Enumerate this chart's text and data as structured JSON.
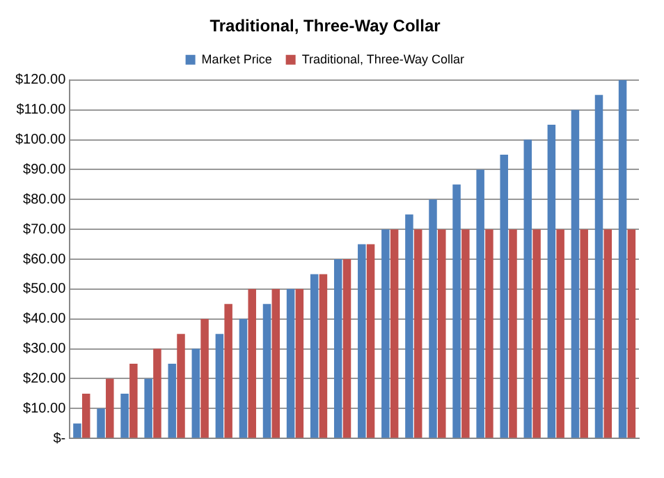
{
  "chart_data": {
    "type": "bar",
    "title": "Traditional, Three-Way Collar",
    "categories": [
      null,
      null,
      null,
      null,
      null,
      null,
      null,
      null,
      null,
      null,
      null,
      null,
      null,
      null,
      null,
      null,
      null,
      null,
      null,
      null,
      null,
      null,
      null,
      null
    ],
    "series": [
      {
        "name": "Market Price",
        "color": "#4f81bd",
        "values": [
          5,
          10,
          15,
          20,
          25,
          30,
          35,
          40,
          45,
          50,
          55,
          60,
          65,
          70,
          75,
          80,
          85,
          90,
          95,
          100,
          105,
          110,
          115,
          120
        ]
      },
      {
        "name": "Traditional, Three-Way Collar",
        "color": "#c0504d",
        "values": [
          15,
          20,
          25,
          30,
          35,
          40,
          45,
          50,
          50,
          50,
          55,
          60,
          65,
          70,
          70,
          70,
          70,
          70,
          70,
          70,
          70,
          70,
          70,
          70
        ]
      }
    ],
    "ylim": [
      0,
      120
    ],
    "yticks": [
      {
        "value": 0,
        "label": "$-"
      },
      {
        "value": 10,
        "label": "$10.00"
      },
      {
        "value": 20,
        "label": "$20.00"
      },
      {
        "value": 30,
        "label": "$30.00"
      },
      {
        "value": 40,
        "label": "$40.00"
      },
      {
        "value": 50,
        "label": "$50.00"
      },
      {
        "value": 60,
        "label": "$60.00"
      },
      {
        "value": 70,
        "label": "$70.00"
      },
      {
        "value": 80,
        "label": "$80.00"
      },
      {
        "value": 90,
        "label": "$90.00"
      },
      {
        "value": 100,
        "label": "$100.00"
      },
      {
        "value": 110,
        "label": "$110.00"
      },
      {
        "value": 120,
        "label": "$120.00"
      }
    ],
    "grid": "y",
    "legend": "top"
  }
}
